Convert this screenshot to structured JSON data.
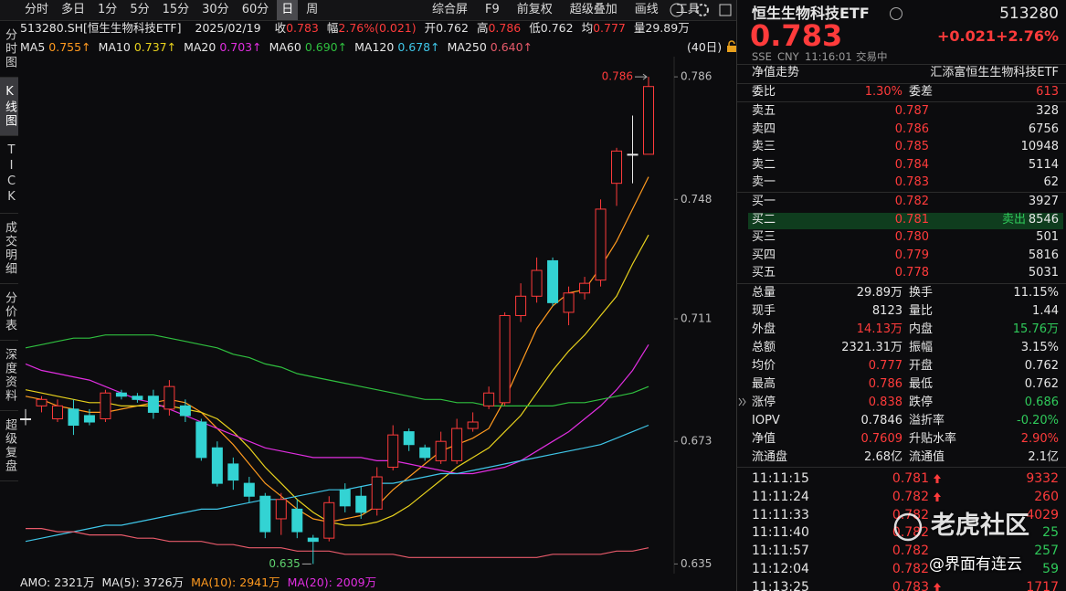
{
  "toolbar": {
    "periods": [
      "分时",
      "多日",
      "1分",
      "5分",
      "15分",
      "30分",
      "60分",
      "日",
      "周"
    ],
    "selected": 7,
    "tools": [
      "综合屏",
      "F9",
      "前复权",
      "超级叠加",
      "画线",
      "工具"
    ]
  },
  "side_tabs": {
    "items": [
      "分时图",
      "K线图",
      "TICK",
      "成交明细",
      "分价表",
      "深度资料",
      "超级复盘"
    ],
    "selected": 1
  },
  "info_bar": {
    "symbol": "513280.SH[恒生生物科技ETF]",
    "date": "2025/02/19",
    "fields": [
      {
        "label": "收",
        "value": "0.783",
        "color": "#ff3b3b"
      },
      {
        "label": "幅",
        "value": "2.76%(0.021)",
        "color": "#ff3b3b"
      },
      {
        "label": "开",
        "value": "0.762",
        "color": "#e0e0e0"
      },
      {
        "label": "高",
        "value": "0.786",
        "color": "#ff3b3b"
      },
      {
        "label": "低",
        "value": "0.762",
        "color": "#e0e0e0"
      },
      {
        "label": "均",
        "value": "0.777",
        "color": "#ff3b3b"
      },
      {
        "label": "量",
        "value": "29.89万",
        "color": "#e0e0e0"
      }
    ]
  },
  "kline": {
    "type": "candlestick",
    "period_label": "(40日)",
    "ylim": [
      0.632,
      0.79
    ],
    "yticks": [
      0.786,
      0.748,
      0.711,
      0.673,
      0.635
    ],
    "up_color": "#ff3b3b",
    "down_color": "#33d3d3",
    "flat_color": "#e8e8e8",
    "open": [
      0.68,
      0.684,
      0.68,
      0.683,
      0.681,
      0.68,
      0.688,
      0.687,
      0.687,
      0.683,
      0.684,
      0.679,
      0.671,
      0.666,
      0.66,
      0.656,
      0.649,
      0.652,
      0.643,
      0.643,
      0.658,
      0.656,
      0.652,
      0.665,
      0.676,
      0.671,
      0.667,
      0.667,
      0.677,
      0.684,
      0.685,
      0.712,
      0.718,
      0.729,
      0.713,
      0.719,
      0.723,
      0.753,
      0.762,
      0.762
    ],
    "high": [
      0.683,
      0.687,
      0.686,
      0.686,
      0.683,
      0.689,
      0.689,
      0.688,
      0.689,
      0.692,
      0.686,
      0.68,
      0.673,
      0.668,
      0.662,
      0.657,
      0.657,
      0.655,
      0.644,
      0.656,
      0.66,
      0.659,
      0.665,
      0.678,
      0.677,
      0.672,
      0.676,
      0.68,
      0.682,
      0.69,
      0.713,
      0.722,
      0.73,
      0.73,
      0.721,
      0.724,
      0.748,
      0.764,
      0.774,
      0.786
    ],
    "low": [
      0.678,
      0.682,
      0.679,
      0.675,
      0.678,
      0.679,
      0.686,
      0.685,
      0.68,
      0.681,
      0.679,
      0.667,
      0.659,
      0.658,
      0.654,
      0.643,
      0.644,
      0.643,
      0.635,
      0.642,
      0.651,
      0.649,
      0.65,
      0.664,
      0.67,
      0.667,
      0.666,
      0.666,
      0.676,
      0.683,
      0.684,
      0.71,
      0.716,
      0.715,
      0.709,
      0.717,
      0.721,
      0.746,
      0.753,
      0.762
    ],
    "close": [
      0.68,
      0.686,
      0.684,
      0.678,
      0.679,
      0.688,
      0.687,
      0.686,
      0.682,
      0.69,
      0.681,
      0.668,
      0.66,
      0.661,
      0.656,
      0.645,
      0.655,
      0.645,
      0.642,
      0.654,
      0.653,
      0.651,
      0.662,
      0.675,
      0.672,
      0.668,
      0.673,
      0.677,
      0.679,
      0.688,
      0.712,
      0.718,
      0.726,
      0.716,
      0.719,
      0.722,
      0.745,
      0.763,
      0.762,
      0.783
    ],
    "high_label": 0.786,
    "low_label": 0.635,
    "ma_lines": [
      {
        "name": "MA5",
        "current": "0.755↑",
        "color": "#ff9a1f",
        "values": [
          0.687,
          0.686,
          0.684,
          0.683,
          0.682,
          0.682,
          0.683,
          0.684,
          0.685,
          0.686,
          0.685,
          0.682,
          0.677,
          0.672,
          0.666,
          0.66,
          0.656,
          0.652,
          0.649,
          0.648,
          0.649,
          0.65,
          0.653,
          0.658,
          0.662,
          0.666,
          0.67,
          0.672,
          0.674,
          0.677,
          0.686,
          0.697,
          0.708,
          0.715,
          0.719,
          0.72,
          0.727,
          0.735,
          0.745,
          0.755
        ]
      },
      {
        "name": "MA10",
        "current": "0.737↑",
        "color": "#e8d21d",
        "values": [
          0.689,
          0.688,
          0.687,
          0.686,
          0.685,
          0.685,
          0.684,
          0.684,
          0.684,
          0.684,
          0.683,
          0.682,
          0.68,
          0.676,
          0.671,
          0.665,
          0.66,
          0.655,
          0.651,
          0.648,
          0.647,
          0.647,
          0.648,
          0.65,
          0.653,
          0.657,
          0.661,
          0.665,
          0.668,
          0.671,
          0.676,
          0.681,
          0.688,
          0.695,
          0.701,
          0.706,
          0.712,
          0.718,
          0.728,
          0.737
        ]
      },
      {
        "name": "MA20",
        "current": "0.703↑",
        "color": "#e02ee0",
        "values": [
          0.697,
          0.695,
          0.694,
          0.693,
          0.692,
          0.69,
          0.688,
          0.686,
          0.685,
          0.683,
          0.681,
          0.679,
          0.677,
          0.675,
          0.673,
          0.671,
          0.67,
          0.669,
          0.668,
          0.668,
          0.668,
          0.668,
          0.667,
          0.667,
          0.666,
          0.665,
          0.664,
          0.663,
          0.663,
          0.664,
          0.665,
          0.667,
          0.67,
          0.673,
          0.676,
          0.68,
          0.684,
          0.689,
          0.695,
          0.703
        ]
      },
      {
        "name": "MA60",
        "current": "0.690↑",
        "color": "#2fbf3f",
        "values": [
          0.702,
          0.703,
          0.704,
          0.705,
          0.705,
          0.706,
          0.706,
          0.706,
          0.706,
          0.705,
          0.704,
          0.703,
          0.702,
          0.7,
          0.699,
          0.697,
          0.696,
          0.694,
          0.693,
          0.692,
          0.691,
          0.69,
          0.689,
          0.688,
          0.687,
          0.686,
          0.686,
          0.685,
          0.685,
          0.684,
          0.684,
          0.684,
          0.684,
          0.684,
          0.685,
          0.685,
          0.686,
          0.687,
          0.688,
          0.69
        ]
      },
      {
        "name": "MA120",
        "current": "0.678↑",
        "color": "#3fc6e8",
        "values": [
          0.642,
          0.643,
          0.644,
          0.645,
          0.646,
          0.647,
          0.647,
          0.648,
          0.649,
          0.65,
          0.651,
          0.652,
          0.652,
          0.653,
          0.654,
          0.655,
          0.655,
          0.656,
          0.657,
          0.658,
          0.658,
          0.659,
          0.66,
          0.66,
          0.661,
          0.662,
          0.663,
          0.663,
          0.664,
          0.665,
          0.666,
          0.667,
          0.668,
          0.669,
          0.67,
          0.671,
          0.672,
          0.674,
          0.676,
          0.678
        ]
      },
      {
        "name": "MA250",
        "current": "0.640↑",
        "color": "#e85a6a",
        "values": [
          0.646,
          0.646,
          0.645,
          0.645,
          0.644,
          0.644,
          0.644,
          0.643,
          0.643,
          0.642,
          0.642,
          0.642,
          0.641,
          0.641,
          0.64,
          0.64,
          0.64,
          0.639,
          0.639,
          0.639,
          0.638,
          0.638,
          0.638,
          0.638,
          0.637,
          0.637,
          0.637,
          0.637,
          0.637,
          0.637,
          0.637,
          0.637,
          0.637,
          0.638,
          0.638,
          0.638,
          0.638,
          0.639,
          0.639,
          0.64
        ]
      }
    ]
  },
  "volume_bar": {
    "amo": {
      "label": "AMO:",
      "value": "2321万"
    },
    "mas": [
      {
        "label": "MA(5):",
        "value": "3726万",
        "color": "#e8e8e8"
      },
      {
        "label": "MA(10):",
        "value": "2941万",
        "color": "#ff9a1f"
      },
      {
        "label": "MA(20):",
        "value": "2009万",
        "color": "#e02ee0"
      }
    ]
  },
  "quote": {
    "name": "恒生生物科技ETF",
    "code": "513280",
    "price": "0.783",
    "change": "+0.021",
    "change_pct": "+2.76%",
    "meta": [
      "SSE",
      "CNY",
      "11:16:01",
      "交易中"
    ],
    "nav_link": "净值走势",
    "fund_company": "汇添富恒生生物科技ETF",
    "ratio": {
      "label": "委比",
      "value": "1.30%",
      "label2": "委差",
      "value2": "613"
    },
    "asks": [
      {
        "label": "卖五",
        "price": "0.787",
        "volume": "328"
      },
      {
        "label": "卖四",
        "price": "0.786",
        "volume": "6756"
      },
      {
        "label": "卖三",
        "price": "0.785",
        "volume": "10948"
      },
      {
        "label": "卖二",
        "price": "0.784",
        "volume": "5114"
      },
      {
        "label": "卖一",
        "price": "0.783",
        "volume": "62"
      }
    ],
    "bids": [
      {
        "label": "买一",
        "price": "0.782",
        "volume": "3927"
      },
      {
        "label": "买二",
        "price": "0.781",
        "volume": "8546",
        "tag": "卖出"
      },
      {
        "label": "买三",
        "price": "0.780",
        "volume": "501"
      },
      {
        "label": "买四",
        "price": "0.779",
        "volume": "5816"
      },
      {
        "label": "买五",
        "price": "0.778",
        "volume": "5031"
      }
    ],
    "stats": [
      {
        "l1": "总量",
        "v1": "29.89万",
        "c1": "white",
        "l2": "换手",
        "v2": "11.15%",
        "c2": "white"
      },
      {
        "l1": "现手",
        "v1": "8123",
        "c1": "white",
        "l2": "量比",
        "v2": "1.44",
        "c2": "white"
      },
      {
        "l1": "外盘",
        "v1": "14.13万",
        "c1": "red",
        "l2": "内盘",
        "v2": "15.76万",
        "c2": "green"
      },
      {
        "l1": "总额",
        "v1": "2321.31万",
        "c1": "white",
        "l2": "振幅",
        "v2": "3.15%",
        "c2": "white"
      },
      {
        "l1": "均价",
        "v1": "0.777",
        "c1": "red",
        "l2": "开盘",
        "v2": "0.762",
        "c2": "white"
      },
      {
        "l1": "最高",
        "v1": "0.786",
        "c1": "red",
        "l2": "最低",
        "v2": "0.762",
        "c2": "white"
      },
      {
        "l1": "涨停",
        "v1": "0.838",
        "c1": "red",
        "l2": "跌停",
        "v2": "0.686",
        "c2": "green"
      },
      {
        "l1": "IOPV",
        "v1": "0.7846",
        "c1": "white",
        "l2": "溢折率",
        "v2": "-0.20%",
        "c2": "green"
      },
      {
        "l1": "净值",
        "v1": "0.7609",
        "c1": "red",
        "l2": "升贴水率",
        "v2": "2.90%",
        "c2": "red"
      },
      {
        "l1": "流通盘",
        "v1": "2.68亿",
        "c1": "white",
        "l2": "流通值",
        "v2": "2.1亿",
        "c2": "white"
      }
    ],
    "trades": [
      {
        "time": "11:11:15",
        "price": "0.781",
        "up": true,
        "volume": "9332",
        "color": "red"
      },
      {
        "time": "11:11:24",
        "price": "0.782",
        "up": true,
        "volume": "260",
        "color": "red"
      },
      {
        "time": "11:11:33",
        "price": "0.782",
        "up": false,
        "volume": "4029",
        "color": "red"
      },
      {
        "time": "11:11:40",
        "price": "0.782",
        "up": false,
        "volume": "25",
        "color": "green"
      },
      {
        "time": "11:11:57",
        "price": "0.782",
        "up": false,
        "volume": "257",
        "color": "green"
      },
      {
        "time": "11:12:04",
        "price": "0.782",
        "up": false,
        "volume": "59",
        "color": "green"
      },
      {
        "time": "11:13:25",
        "price": "0.783",
        "up": true,
        "volume": "1717",
        "color": "red"
      }
    ]
  },
  "watermark": {
    "brand": "老虎社区",
    "credit": "@界面有连云"
  }
}
